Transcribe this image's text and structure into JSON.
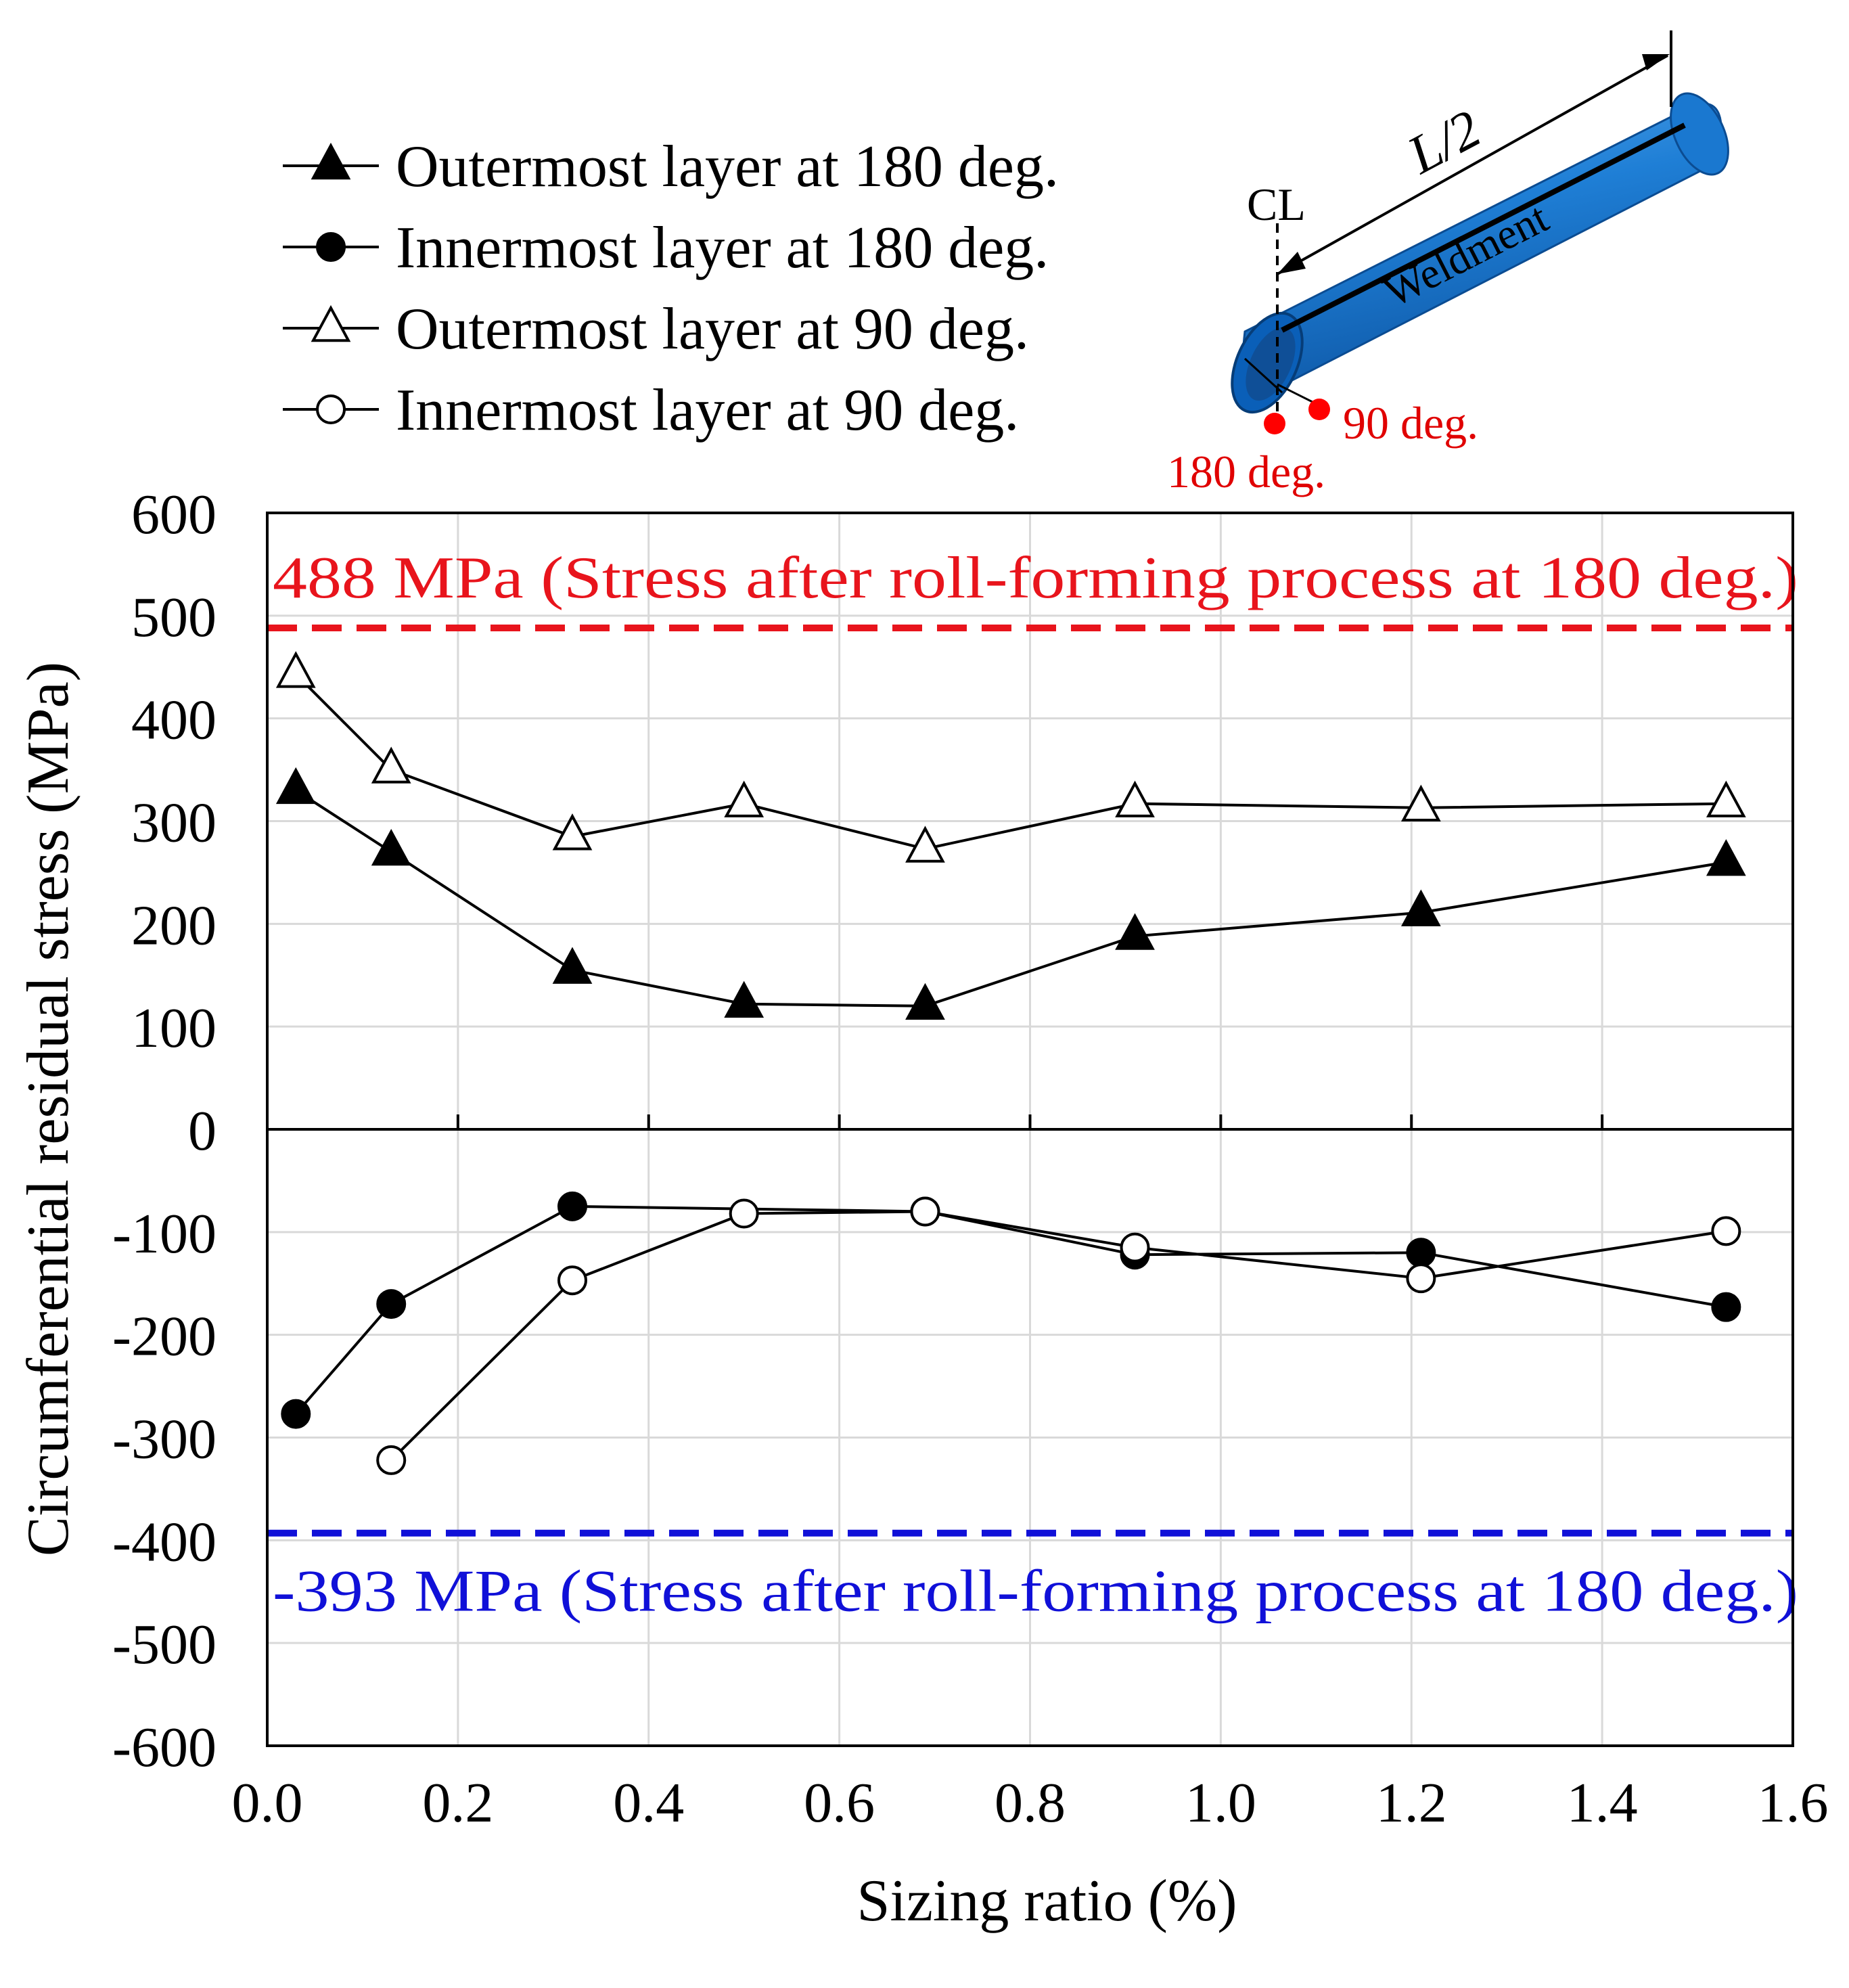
{
  "chart_data": {
    "type": "line",
    "title": "",
    "xlabel": "Sizing ratio (%)",
    "ylabel": "Circumferential residual stress (MPa)",
    "xlim": [
      0.0,
      1.6
    ],
    "ylim": [
      -600,
      600
    ],
    "x_ticks": [
      "0.0",
      "0.2",
      "0.4",
      "0.6",
      "0.8",
      "1.0",
      "1.2",
      "1.4",
      "1.6"
    ],
    "y_ticks": [
      "600",
      "500",
      "400",
      "300",
      "200",
      "100",
      "0",
      "-100",
      "-200",
      "-300",
      "-400",
      "-500",
      "-600"
    ],
    "grid": true,
    "legend_position": "top-left",
    "series": [
      {
        "name": "Outermost layer at 180 deg.",
        "marker": "triangle-filled",
        "x": [
          0.03,
          0.13,
          0.32,
          0.5,
          0.69,
          0.91,
          1.21,
          1.53
        ],
        "y": [
          330,
          270,
          155,
          122,
          120,
          188,
          211,
          260
        ]
      },
      {
        "name": "Innermost layer at 180 deg.",
        "marker": "circle-filled",
        "x": [
          0.03,
          0.13,
          0.32,
          0.69,
          0.91,
          1.21,
          1.53
        ],
        "y": [
          -277,
          -170,
          -75,
          -80,
          -122,
          -120,
          -173
        ]
      },
      {
        "name": "Outermost layer at 90 deg.",
        "marker": "triangle-open",
        "x": [
          0.03,
          0.13,
          0.32,
          0.5,
          0.69,
          0.91,
          1.21,
          1.53
        ],
        "y": [
          443,
          350,
          285,
          317,
          273,
          317,
          313,
          317
        ]
      },
      {
        "name": "Innermost layer at 90 deg.",
        "marker": "circle-open",
        "x": [
          0.13,
          0.32,
          0.5,
          0.69,
          0.91,
          1.21,
          1.53
        ],
        "y": [
          -322,
          -147,
          -82,
          -80,
          -115,
          -145,
          -99
        ]
      }
    ],
    "reference_lines": [
      {
        "value": 488,
        "label": "488 MPa (Stress after roll-forming process at 180 deg.)",
        "color": "#e8141c"
      },
      {
        "value": -393,
        "label": "-393 MPa (Stress after roll-forming process at 180 deg.)",
        "color": "#1010d8"
      }
    ],
    "inset": {
      "length_label": "L/2",
      "centerline_label": "CL",
      "weld_label": "Weldment",
      "label_90": "90 deg.",
      "label_180": "180 deg.",
      "pipe_color": "#1874cd",
      "marker_color": "#ff0000"
    }
  }
}
